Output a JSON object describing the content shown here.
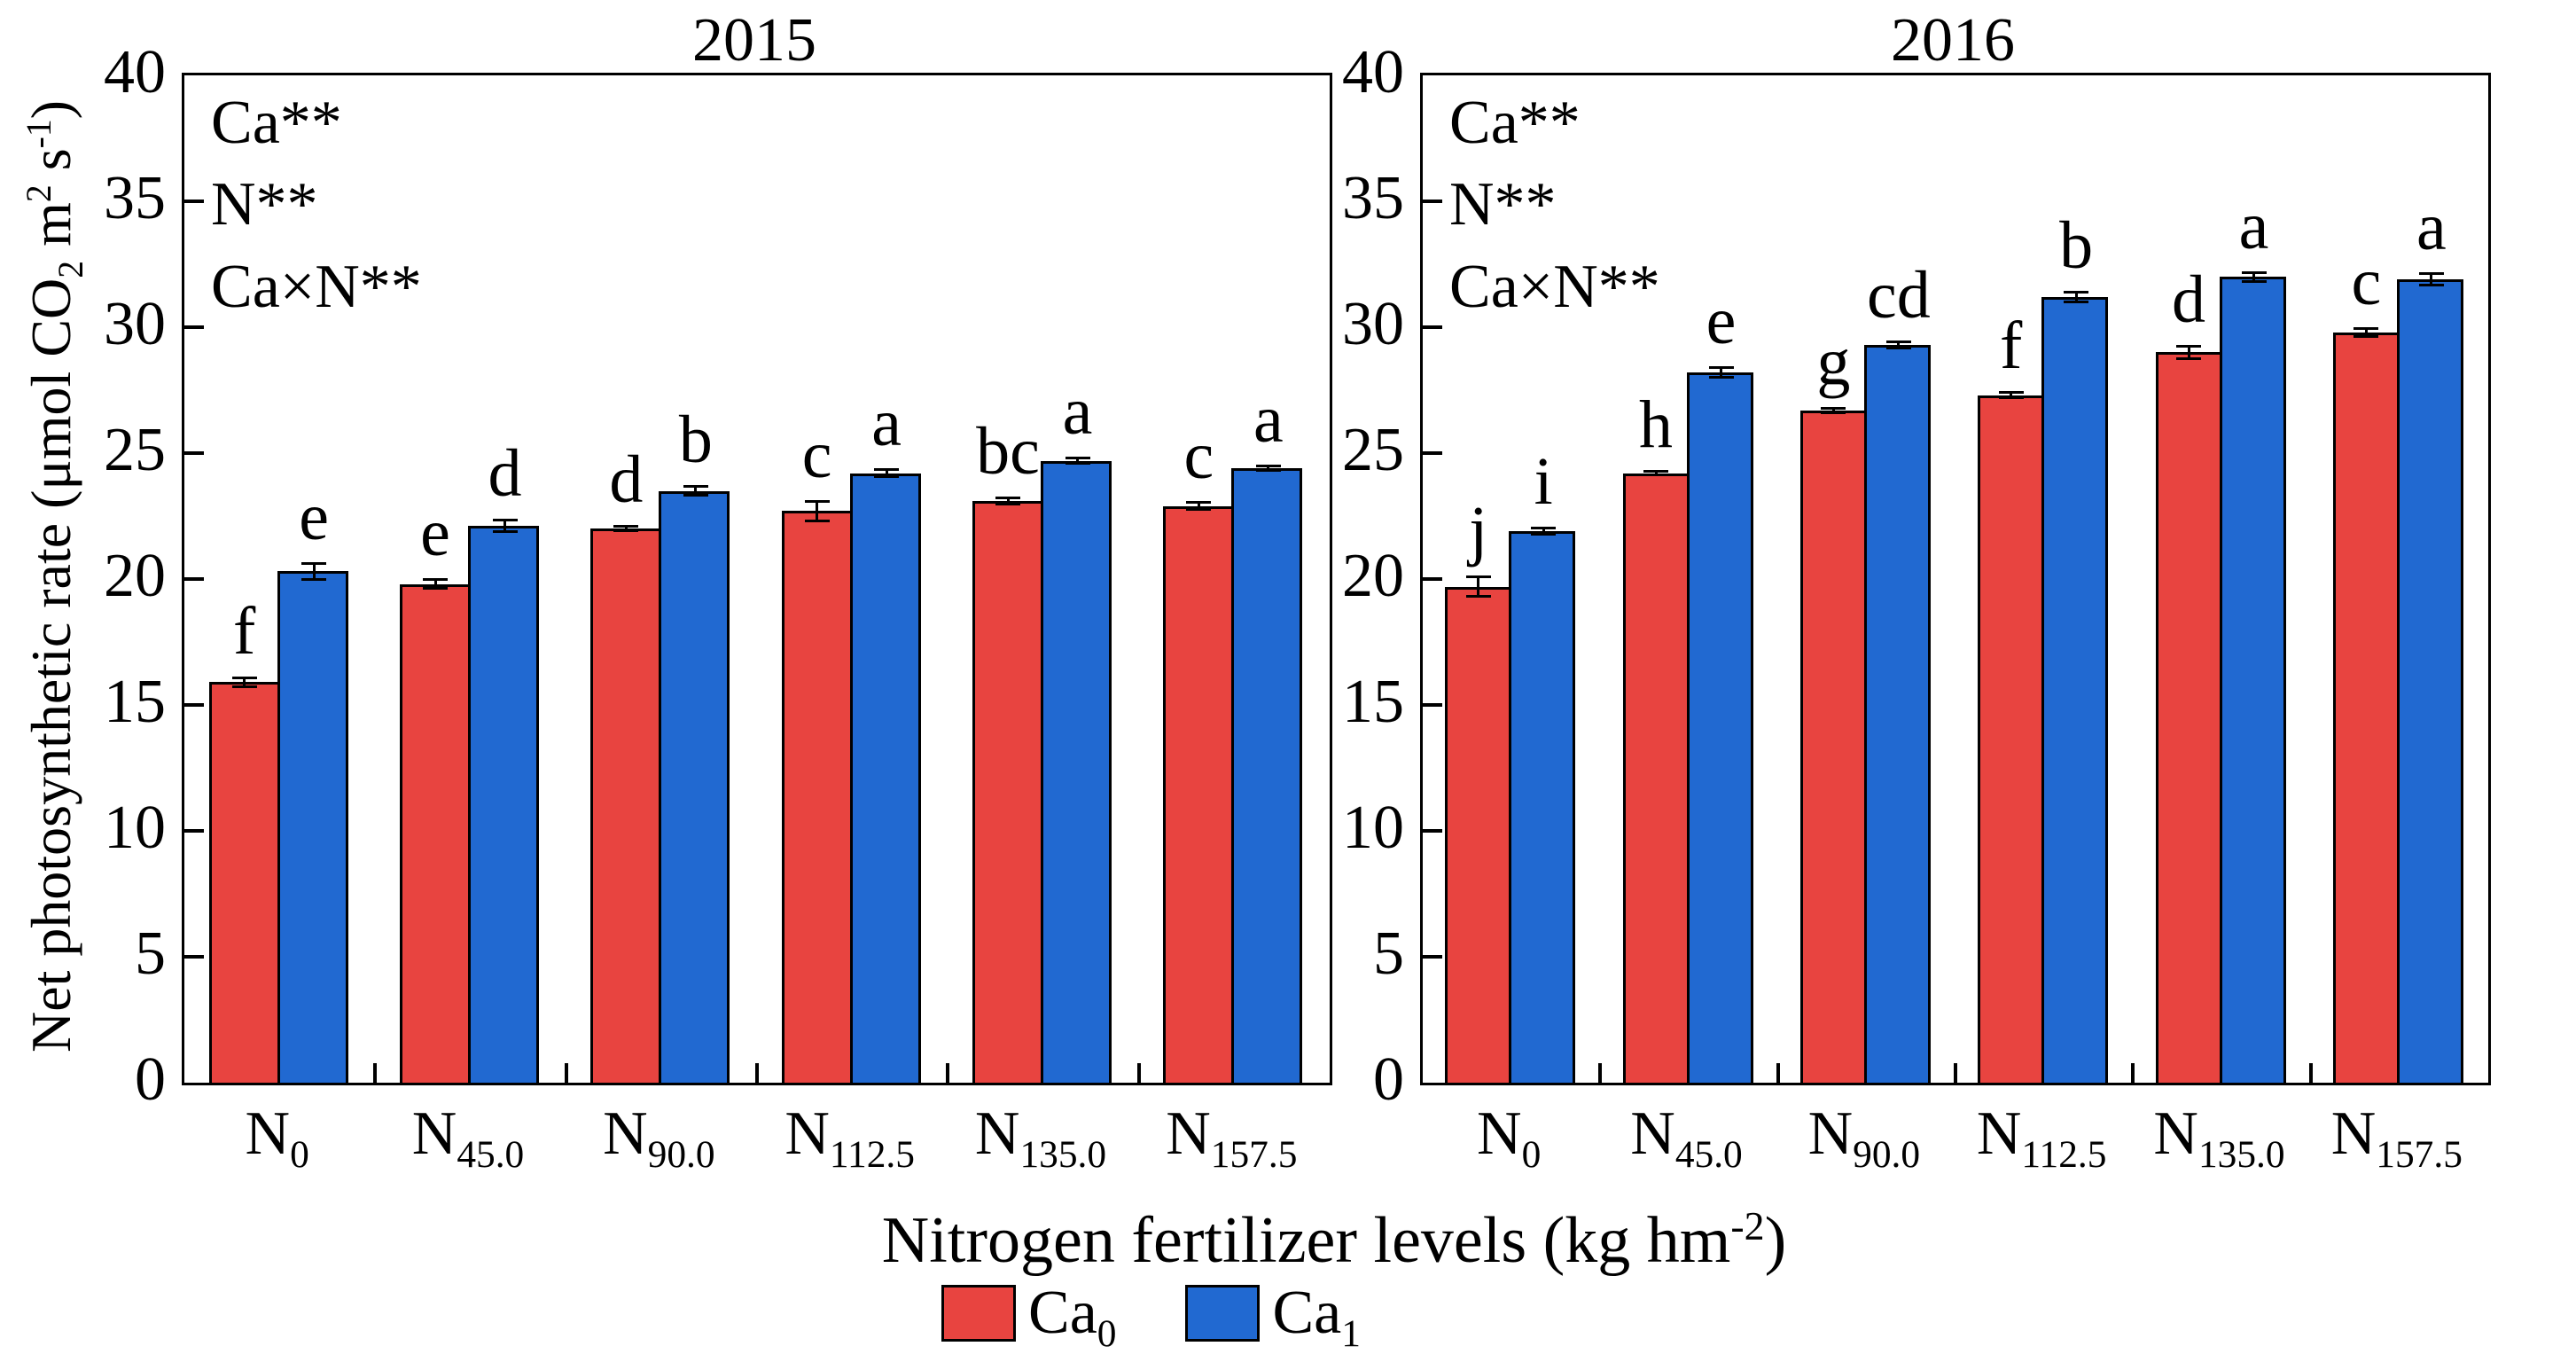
{
  "axes": {
    "y_title": {
      "parts": [
        {
          "t": "Net photosynthetic rate (μmol CO"
        },
        {
          "t": "2"
        },
        {
          "t": " m"
        },
        {
          "t": "2"
        },
        {
          "t": " s"
        },
        {
          "t": "-1"
        },
        {
          "t": ")"
        }
      ]
    },
    "x_title": {
      "parts": [
        {
          "t": "Nitrogen fertilizer levels (kg hm"
        },
        {
          "t": "-2"
        },
        {
          "t": ")"
        }
      ]
    }
  },
  "legend": {
    "items": [
      {
        "label": "Ca",
        "sub": "0",
        "color": "#E84440"
      },
      {
        "label": "Ca",
        "sub": "1",
        "color": "#2169D1"
      }
    ]
  },
  "chart_data": [
    {
      "type": "bar",
      "title": "2015",
      "annotations": [
        "Ca**",
        "N**",
        "Ca×N**"
      ],
      "ylim": [
        0,
        40
      ],
      "ytick_step": 5,
      "grid": false,
      "ylabel": "Net photosynthetic rate (μmol CO2 m2 s-1)",
      "xlabel": "Nitrogen fertilizer levels (kg hm-2)",
      "categories": [
        {
          "base": "N",
          "sub": "0"
        },
        {
          "base": "N",
          "sub": "45.0"
        },
        {
          "base": "N",
          "sub": "90.0"
        },
        {
          "base": "N",
          "sub": "112.5"
        },
        {
          "base": "N",
          "sub": "135.0"
        },
        {
          "base": "N",
          "sub": "157.5"
        }
      ],
      "series": [
        {
          "name": "Ca0",
          "color": "#E84440",
          "values": [
            15.9,
            19.8,
            22.0,
            22.7,
            23.1,
            22.9
          ],
          "errors": [
            0.2,
            0.2,
            0.1,
            0.4,
            0.15,
            0.15
          ],
          "letters": [
            "f",
            "e",
            "d",
            "c",
            "bc",
            "c"
          ]
        },
        {
          "name": "Ca1",
          "color": "#2169D1",
          "values": [
            20.3,
            22.1,
            23.5,
            24.2,
            24.7,
            24.4
          ],
          "errors": [
            0.35,
            0.25,
            0.2,
            0.15,
            0.12,
            0.12
          ],
          "letters": [
            "e",
            "d",
            "b",
            "a",
            "a",
            "a"
          ]
        }
      ]
    },
    {
      "type": "bar",
      "title": "2016",
      "annotations": [
        "Ca**",
        "N**",
        "Ca×N**"
      ],
      "ylim": [
        0,
        40
      ],
      "ytick_step": 5,
      "grid": false,
      "ylabel": "Net photosynthetic rate (μmol CO2 m2 s-1)",
      "xlabel": "Nitrogen fertilizer levels (kg hm-2)",
      "categories": [
        {
          "base": "N",
          "sub": "0"
        },
        {
          "base": "N",
          "sub": "45.0"
        },
        {
          "base": "N",
          "sub": "90.0"
        },
        {
          "base": "N",
          "sub": "112.5"
        },
        {
          "base": "N",
          "sub": "135.0"
        },
        {
          "base": "N",
          "sub": "157.5"
        }
      ],
      "series": [
        {
          "name": "Ca0",
          "color": "#E84440",
          "values": [
            19.7,
            24.2,
            26.7,
            27.3,
            29.0,
            29.8
          ],
          "errors": [
            0.4,
            0.08,
            0.1,
            0.12,
            0.25,
            0.18
          ],
          "letters": [
            "j",
            "h",
            "g",
            "f",
            "d",
            "c"
          ]
        },
        {
          "name": "Ca1",
          "color": "#2169D1",
          "values": [
            21.9,
            28.2,
            29.3,
            31.2,
            32.0,
            31.9
          ],
          "errors": [
            0.15,
            0.2,
            0.15,
            0.2,
            0.2,
            0.25
          ],
          "letters": [
            "i",
            "e",
            "cd",
            "b",
            "a",
            "a"
          ]
        }
      ]
    }
  ]
}
